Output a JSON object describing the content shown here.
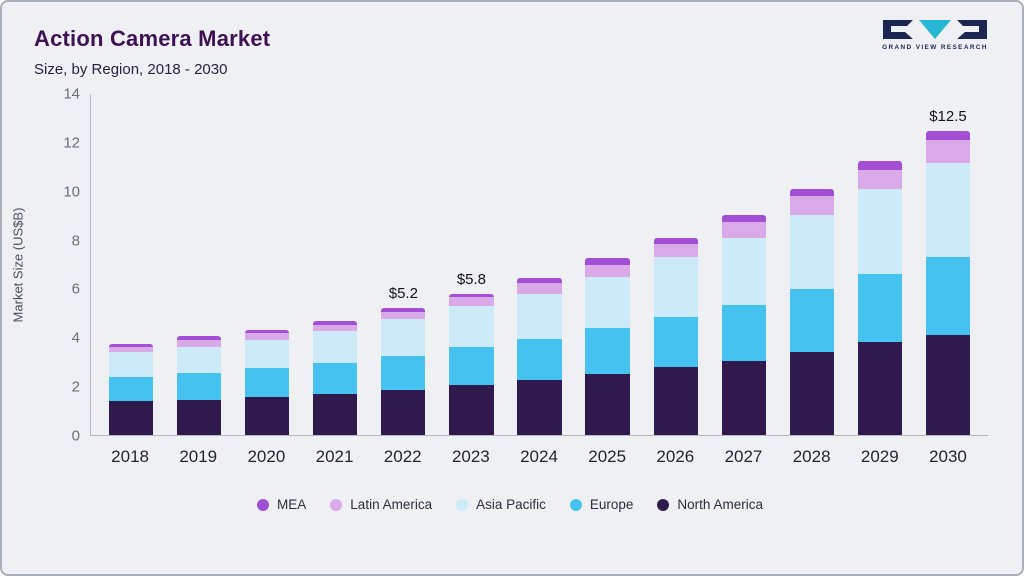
{
  "header": {
    "title": "Action Camera Market",
    "subtitle": "Size, by Region, 2018 - 2030"
  },
  "logo": {
    "text": "GRAND VIEW RESEARCH",
    "navy": "#1c2653",
    "teal": "#27b7d5"
  },
  "chart_data": {
    "type": "bar",
    "stacked": true,
    "title": "Action Camera Market Size, by Region, 2018 - 2030",
    "ylabel": "Market Size (US$B)",
    "ylim": [
      0,
      14
    ],
    "yticks": [
      0,
      2,
      4,
      6,
      8,
      10,
      12,
      14
    ],
    "categories": [
      "2018",
      "2019",
      "2020",
      "2021",
      "2022",
      "2023",
      "2024",
      "2025",
      "2026",
      "2027",
      "2028",
      "2029",
      "2030"
    ],
    "series": [
      {
        "name": "North America",
        "values": [
          1.4,
          1.45,
          1.55,
          1.7,
          1.85,
          2.05,
          2.25,
          2.5,
          2.8,
          3.05,
          3.4,
          3.8,
          4.1
        ]
      },
      {
        "name": "Europe",
        "values": [
          1.0,
          1.1,
          1.2,
          1.25,
          1.4,
          1.55,
          1.7,
          1.9,
          2.05,
          2.3,
          2.6,
          2.8,
          3.2
        ]
      },
      {
        "name": "Asia Pacific",
        "values": [
          1.0,
          1.05,
          1.15,
          1.3,
          1.5,
          1.7,
          1.85,
          2.1,
          2.45,
          2.75,
          3.05,
          3.5,
          3.85
        ]
      },
      {
        "name": "Latin America",
        "values": [
          0.22,
          0.28,
          0.27,
          0.28,
          0.3,
          0.35,
          0.45,
          0.5,
          0.55,
          0.65,
          0.75,
          0.8,
          0.95
        ]
      },
      {
        "name": "MEA",
        "values": [
          0.13,
          0.17,
          0.13,
          0.17,
          0.15,
          0.15,
          0.2,
          0.25,
          0.25,
          0.3,
          0.3,
          0.35,
          0.4
        ]
      }
    ],
    "totals": [
      3.75,
      4.05,
      4.3,
      4.7,
      5.2,
      5.8,
      6.45,
      7.25,
      8.1,
      9.05,
      10.1,
      11.25,
      12.5
    ],
    "annotations": [
      {
        "category": "2022",
        "text": "$5.2"
      },
      {
        "category": "2023",
        "text": "$5.8"
      },
      {
        "category": "2030",
        "text": "$12.5"
      }
    ],
    "legend": [
      "MEA",
      "Latin America",
      "Asia Pacific",
      "Europe",
      "North America"
    ],
    "legend_position": "bottom",
    "grid": false,
    "colors": {
      "MEA": "#a24fd6",
      "Latin America": "#d9a9e8",
      "Asia Pacific": "#cdeaf9",
      "Europe": "#45c2ef",
      "North America": "#30194d"
    }
  }
}
